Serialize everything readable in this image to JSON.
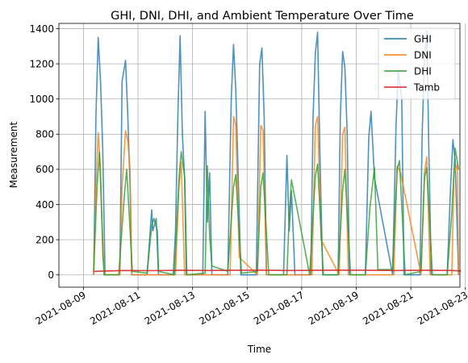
{
  "chart_data": {
    "type": "line",
    "title": "GHI, DNI, DHI, and Ambient Temperature Over Time",
    "xlabel": "Time",
    "ylabel": "Measurement",
    "x_range": [
      "2021-08-09",
      "2021-08-23"
    ],
    "ylim": [
      -70,
      1430
    ],
    "x_ticks": [
      "2021-08-09",
      "2021-08-11",
      "2021-08-13",
      "2021-08-15",
      "2021-08-17",
      "2021-08-19",
      "2021-08-21",
      "2021-08-23"
    ],
    "y_ticks": [
      0,
      200,
      400,
      600,
      800,
      1000,
      1200,
      1400
    ],
    "grid": true,
    "legend_position": "top-right",
    "series": [
      {
        "name": "GHI",
        "color": "#1f77b4",
        "x": [
          "2021-08-09T09:00",
          "2021-08-09T11:00",
          "2021-08-09T13:00",
          "2021-08-09T15:00",
          "2021-08-09T17:00",
          "2021-08-09T19:00",
          "2021-08-10T08:00",
          "2021-08-10T10:00",
          "2021-08-10T13:00",
          "2021-08-10T15:00",
          "2021-08-10T17:00",
          "2021-08-10T18:30",
          "2021-08-11T08:00",
          "2021-08-11T12:00",
          "2021-08-11T13:00",
          "2021-08-11T16:00",
          "2021-08-11T18:00",
          "2021-08-12T07:00",
          "2021-08-12T09:00",
          "2021-08-12T11:00",
          "2021-08-12T13:00",
          "2021-08-12T15:00",
          "2021-08-12T17:00",
          "2021-08-12T18:30",
          "2021-08-13T09:00",
          "2021-08-13T11:00",
          "2021-08-13T13:00",
          "2021-08-13T15:00",
          "2021-08-13T17:00",
          "2021-08-14T07:00",
          "2021-08-14T10:00",
          "2021-08-14T12:00",
          "2021-08-14T14:00",
          "2021-08-14T16:00",
          "2021-08-14T18:30",
          "2021-08-15T08:00",
          "2021-08-15T11:00",
          "2021-08-15T13:00",
          "2021-08-15T15:00",
          "2021-08-15T17:00",
          "2021-08-16T08:00",
          "2021-08-16T11:00",
          "2021-08-16T13:00",
          "2021-08-16T15:00",
          "2021-08-16T18:00",
          "2021-08-17T08:00",
          "2021-08-17T10:00",
          "2021-08-17T12:00",
          "2021-08-17T14:00",
          "2021-08-17T16:00",
          "2021-08-17T18:30",
          "2021-08-18T08:00",
          "2021-08-18T10:00",
          "2021-08-18T12:00",
          "2021-08-18T14:00",
          "2021-08-18T16:00",
          "2021-08-18T18:00",
          "2021-08-19T08:00",
          "2021-08-19T11:00",
          "2021-08-19T13:00",
          "2021-08-19T16:00",
          "2021-08-20T08:00",
          "2021-08-20T11:00",
          "2021-08-20T13:00",
          "2021-08-20T16:00",
          "2021-08-20T18:00",
          "2021-08-21T08:00",
          "2021-08-21T10:00",
          "2021-08-21T12:00",
          "2021-08-21T14:00",
          "2021-08-21T16:00",
          "2021-08-21T18:00",
          "2021-08-22T08:00",
          "2021-08-22T11:00",
          "2021-08-22T13:00",
          "2021-08-22T15:00",
          "2021-08-22T18:00"
        ],
        "values": [
          0,
          900,
          1350,
          1100,
          700,
          0,
          0,
          1100,
          1220,
          900,
          500,
          0,
          0,
          370,
          250,
          320,
          0,
          0,
          250,
          900,
          1360,
          800,
          550,
          0,
          0,
          930,
          300,
          580,
          0,
          0,
          1000,
          1310,
          1050,
          600,
          0,
          0,
          1200,
          1290,
          900,
          0,
          0,
          680,
          250,
          480,
          0,
          0,
          900,
          1260,
          1380,
          700,
          0,
          0,
          900,
          1270,
          1180,
          800,
          0,
          0,
          780,
          930,
          550,
          0,
          850,
          1160,
          1000,
          0,
          0,
          800,
          1220,
          1390,
          650,
          0,
          0,
          500,
          770,
          650,
          0
        ]
      },
      {
        "name": "DNI",
        "color": "#ff7f0e",
        "x": [
          "2021-08-09T09:00",
          "2021-08-09T11:00",
          "2021-08-09T13:00",
          "2021-08-09T15:00",
          "2021-08-09T17:00",
          "2021-08-09T19:00",
          "2021-08-10T08:00",
          "2021-08-10T10:00",
          "2021-08-10T13:00",
          "2021-08-10T15:00",
          "2021-08-10T17:00",
          "2021-08-10T18:30",
          "2021-08-11T08:00",
          "2021-08-11T14:00",
          "2021-08-12T09:00",
          "2021-08-12T12:00",
          "2021-08-12T14:00",
          "2021-08-12T17:00",
          "2021-08-13T12:00",
          "2021-08-14T09:00",
          "2021-08-14T12:00",
          "2021-08-14T14:00",
          "2021-08-14T17:00",
          "2021-08-15T09:00",
          "2021-08-15T12:00",
          "2021-08-15T14:00",
          "2021-08-15T17:00",
          "2021-08-16T12:00",
          "2021-08-17T09:00",
          "2021-08-17T12:00",
          "2021-08-17T14:00",
          "2021-08-17T17:00",
          "2021-08-18T09:00",
          "2021-08-18T12:00",
          "2021-08-18T14:00",
          "2021-08-18T17:00",
          "2021-08-19T12:00",
          "2021-08-20T09:00",
          "2021-08-20T12:00",
          "2021-08-20T15:00",
          "2021-08-21T09:00",
          "2021-08-21T12:00",
          "2021-08-21T14:00",
          "2021-08-21T17:00",
          "2021-08-22T12:00",
          "2021-08-22T14:00",
          "2021-08-22T17:00",
          "2021-08-22T18:00"
        ],
        "values": [
          0,
          500,
          810,
          600,
          100,
          0,
          0,
          500,
          820,
          760,
          600,
          0,
          0,
          0,
          0,
          500,
          640,
          0,
          0,
          0,
          900,
          850,
          100,
          0,
          850,
          820,
          0,
          0,
          0,
          850,
          900,
          200,
          0,
          800,
          840,
          0,
          0,
          0,
          620,
          580,
          0,
          580,
          670,
          0,
          0,
          580,
          630,
          0
        ]
      },
      {
        "name": "DHI",
        "color": "#2ca02c",
        "x": [
          "2021-08-09T09:00",
          "2021-08-09T12:00",
          "2021-08-09T14:00",
          "2021-08-09T18:00",
          "2021-08-10T07:00",
          "2021-08-10T12:00",
          "2021-08-10T14:00",
          "2021-08-10T19:00",
          "2021-08-11T08:00",
          "2021-08-11T12:00",
          "2021-08-11T14:00",
          "2021-08-11T17:00",
          "2021-08-11T18:00",
          "2021-08-12T08:00",
          "2021-08-12T12:00",
          "2021-08-12T14:00",
          "2021-08-12T17:00",
          "2021-08-12T19:00",
          "2021-08-13T11:00",
          "2021-08-13T13:00",
          "2021-08-13T15:00",
          "2021-08-13T17:00",
          "2021-08-14T07:00",
          "2021-08-14T12:00",
          "2021-08-14T14:00",
          "2021-08-14T19:00",
          "2021-08-15T09:00",
          "2021-08-15T12:00",
          "2021-08-15T14:00",
          "2021-08-15T19:00",
          "2021-08-16T11:00",
          "2021-08-16T13:00",
          "2021-08-16T15:00",
          "2021-08-17T07:00",
          "2021-08-17T12:00",
          "2021-08-17T14:00",
          "2021-08-17T19:00",
          "2021-08-18T08:00",
          "2021-08-18T12:00",
          "2021-08-18T14:00",
          "2021-08-18T19:00",
          "2021-08-19T08:00",
          "2021-08-19T12:00",
          "2021-08-19T16:00",
          "2021-08-19T19:00",
          "2021-08-20T08:00",
          "2021-08-20T12:00",
          "2021-08-20T14:00",
          "2021-08-20T19:00",
          "2021-08-21T09:00",
          "2021-08-21T12:00",
          "2021-08-21T14:00",
          "2021-08-21T19:00",
          "2021-08-22T08:00",
          "2021-08-22T12:00",
          "2021-08-22T15:00",
          "2021-08-22T18:00"
        ],
        "values": [
          20,
          500,
          700,
          0,
          0,
          450,
          600,
          20,
          10,
          280,
          320,
          250,
          20,
          0,
          550,
          700,
          560,
          0,
          10,
          620,
          220,
          50,
          20,
          500,
          570,
          10,
          20,
          500,
          580,
          0,
          0,
          330,
          540,
          0,
          560,
          630,
          0,
          0,
          480,
          600,
          0,
          0,
          380,
          610,
          30,
          30,
          600,
          650,
          0,
          20,
          550,
          610,
          0,
          0,
          350,
          720,
          600
        ]
      },
      {
        "name": "Tamb",
        "color": "#d62728",
        "x": [
          "2021-08-09T09:00",
          "2021-08-10T12:00",
          "2021-08-11T12:00",
          "2021-08-12T12:00",
          "2021-08-13T12:00",
          "2021-08-14T12:00",
          "2021-08-15T12:00",
          "2021-08-16T12:00",
          "2021-08-17T12:00",
          "2021-08-18T12:00",
          "2021-08-19T12:00",
          "2021-08-20T12:00",
          "2021-08-21T12:00",
          "2021-08-22T12:00",
          "2021-08-22T20:00"
        ],
        "values": [
          20,
          25,
          24,
          26,
          25,
          26,
          27,
          25,
          26,
          27,
          26,
          25,
          26,
          25,
          22
        ]
      }
    ]
  }
}
